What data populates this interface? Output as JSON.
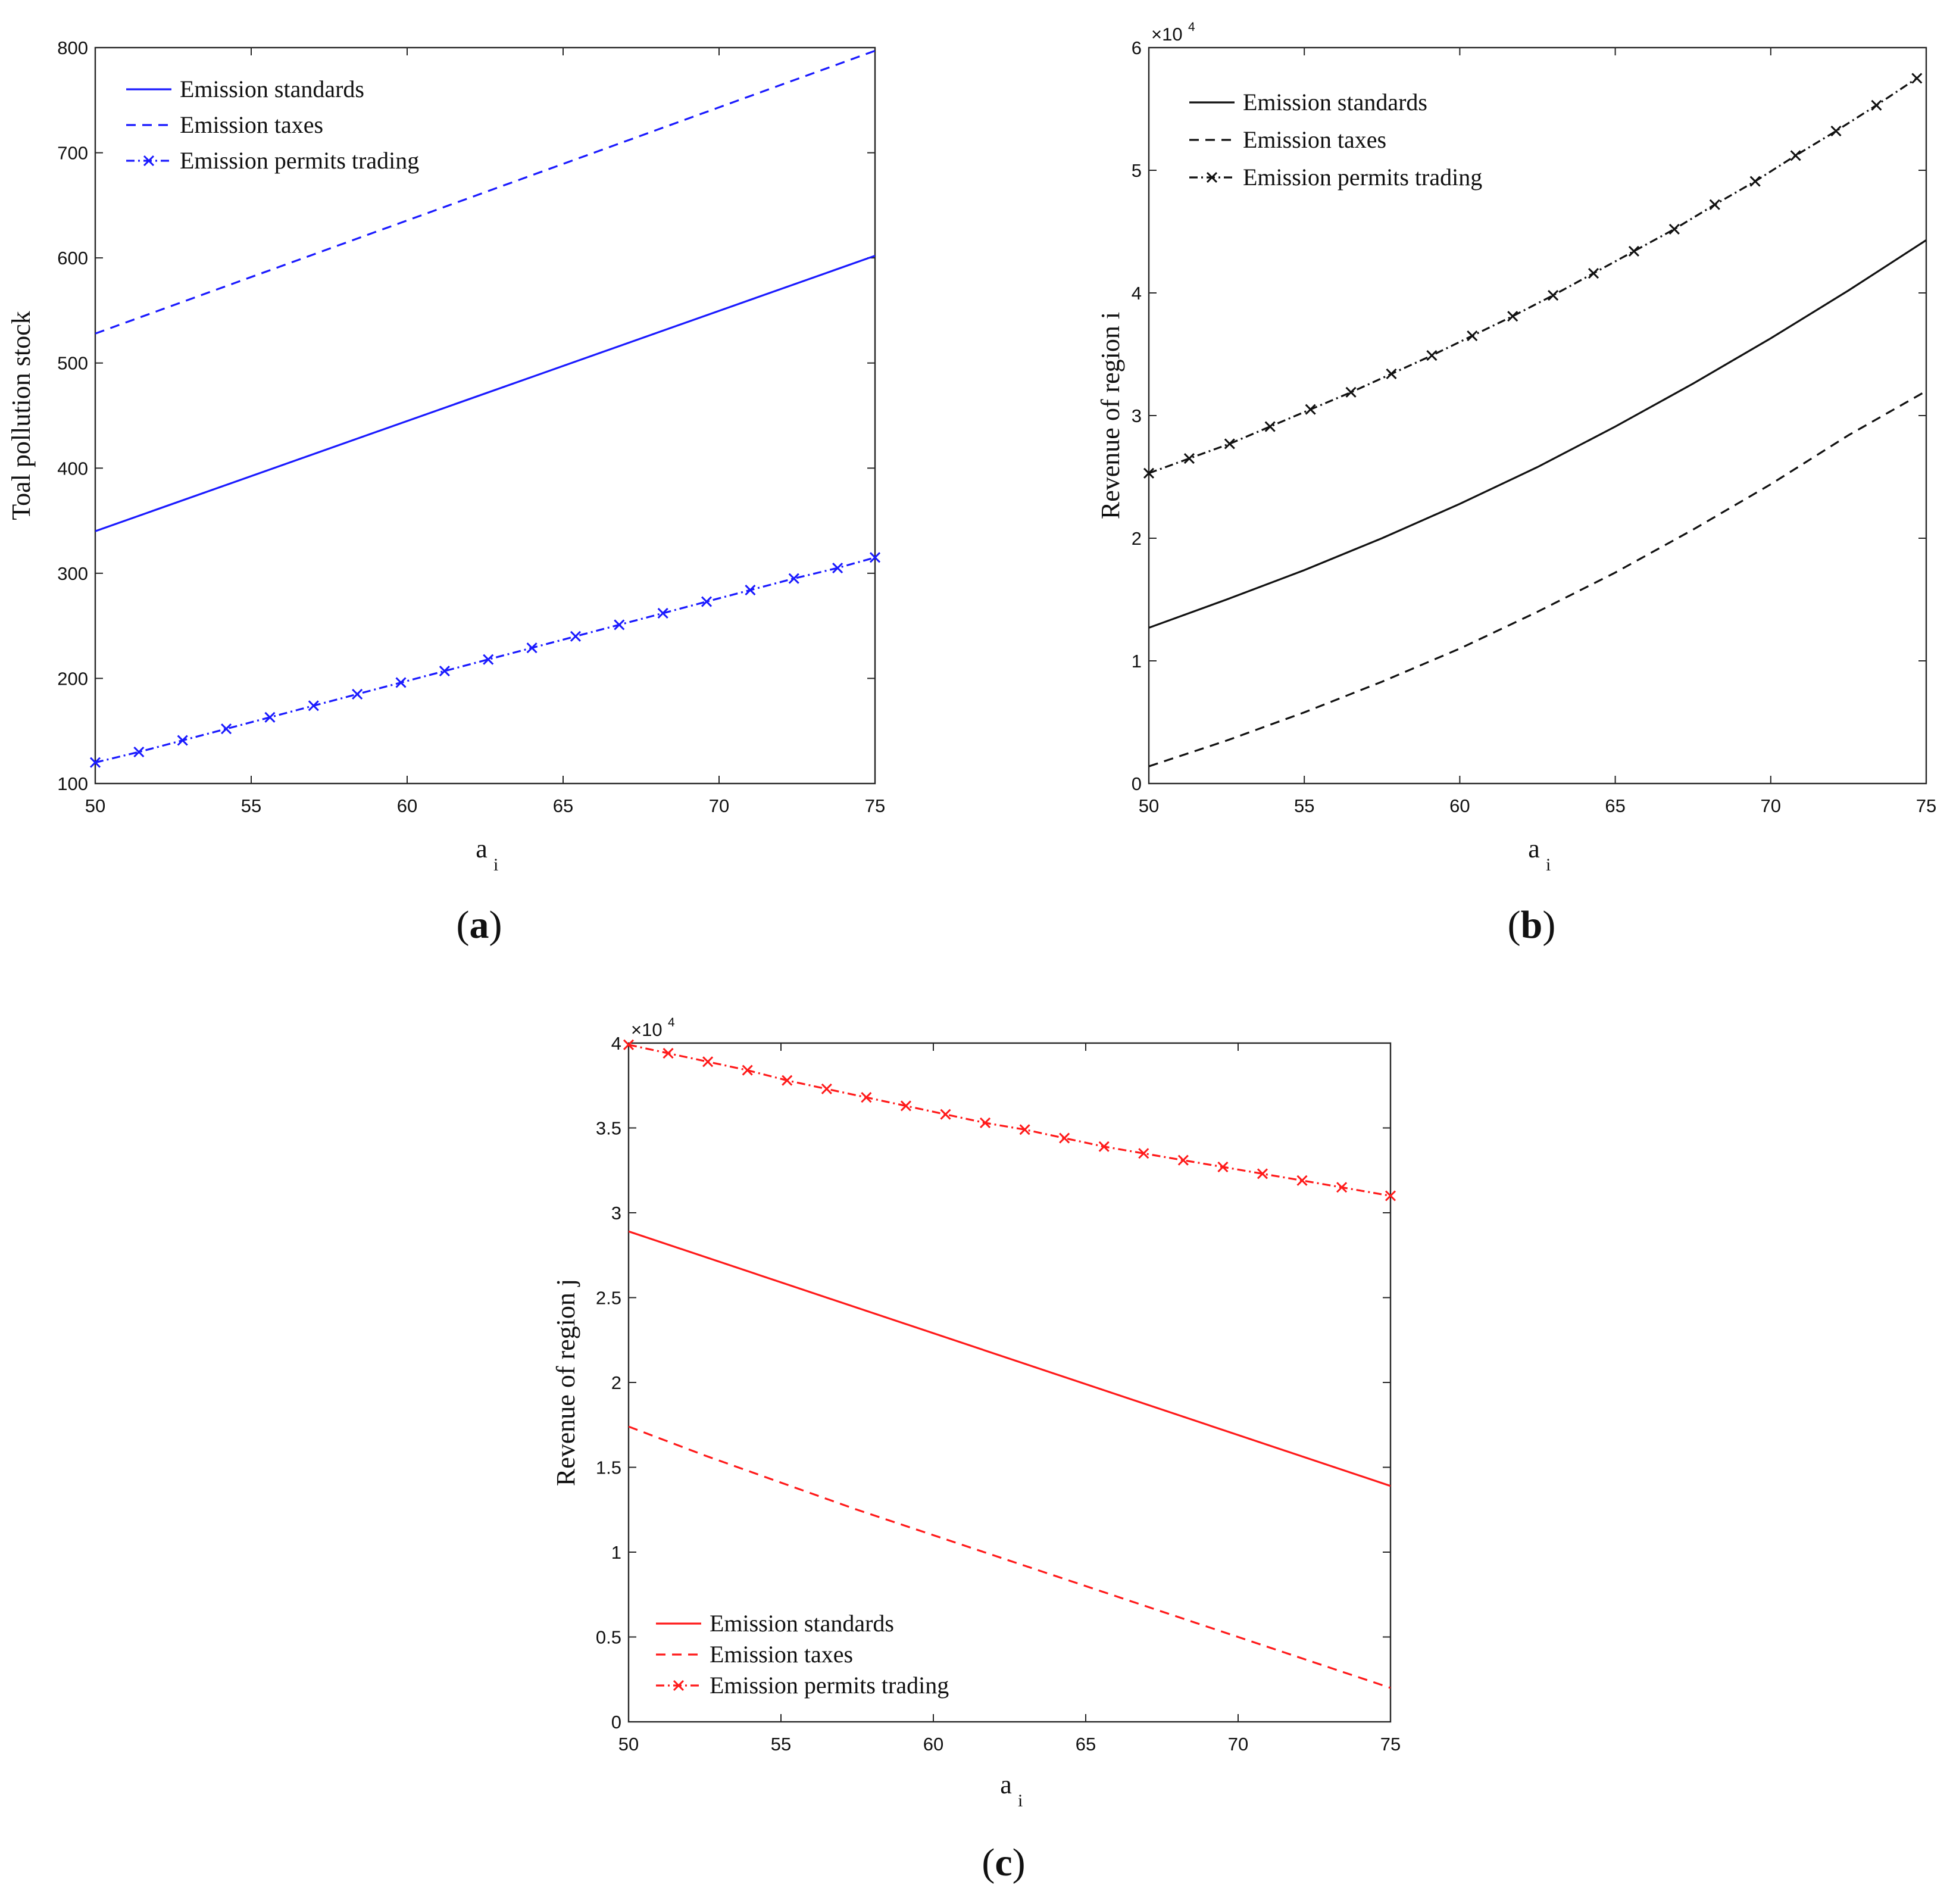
{
  "chart_data": [
    {
      "id": "a",
      "type": "line",
      "panel_label": "a",
      "xlabel": "a",
      "xlabel_sub": "i",
      "ylabel": "Toal pollution stock",
      "xlim": [
        50,
        75
      ],
      "ylim": [
        100,
        800
      ],
      "xticks": [
        50,
        55,
        60,
        65,
        70,
        75
      ],
      "yticks": [
        100,
        200,
        300,
        400,
        500,
        600,
        700,
        800
      ],
      "multiplier": null,
      "color": "#1a1aff",
      "legend_position": "top-left",
      "series": [
        {
          "name": "Emission standards",
          "style": "solid",
          "x": [
            50,
            75
          ],
          "y": [
            340,
            602
          ]
        },
        {
          "name": "Emission taxes",
          "style": "dashed",
          "x": [
            50,
            75
          ],
          "y": [
            528,
            797
          ]
        },
        {
          "name": "Emission permits trading",
          "style": "dashdot-x",
          "x": [
            50,
            51.4,
            52.8,
            54.2,
            55.6,
            57,
            58.4,
            59.8,
            61.2,
            62.6,
            64,
            65.4,
            66.8,
            68.2,
            69.6,
            71,
            72.4,
            73.8,
            75
          ],
          "y": [
            120,
            130,
            141,
            152,
            163,
            174,
            185,
            196,
            207,
            218,
            229,
            240,
            251,
            262,
            273,
            284,
            295,
            305,
            315
          ]
        }
      ]
    },
    {
      "id": "b",
      "type": "line",
      "panel_label": "b",
      "xlabel": "a",
      "xlabel_sub": "i",
      "ylabel": "Revenue of region i",
      "xlim": [
        50,
        75
      ],
      "ylim": [
        0,
        6
      ],
      "xticks": [
        50,
        55,
        60,
        65,
        70,
        75
      ],
      "yticks": [
        0,
        1,
        2,
        3,
        4,
        5,
        6
      ],
      "multiplier": {
        "base": "×10",
        "exp": "4"
      },
      "color": "#111111",
      "legend_position": "top-left",
      "series": [
        {
          "name": "Emission standards",
          "style": "solid",
          "x": [
            50,
            52.5,
            55,
            57.5,
            60,
            62.5,
            65,
            67.5,
            70,
            72.5,
            75
          ],
          "y": [
            1.27,
            1.5,
            1.74,
            2.0,
            2.28,
            2.58,
            2.91,
            3.26,
            3.63,
            4.02,
            4.43
          ]
        },
        {
          "name": "Emission taxes",
          "style": "dashed",
          "x": [
            50,
            52.5,
            55,
            57.5,
            60,
            62.5,
            65,
            67.5,
            70,
            72.5,
            75
          ],
          "y": [
            0.14,
            0.35,
            0.58,
            0.83,
            1.1,
            1.4,
            1.72,
            2.07,
            2.44,
            2.84,
            3.2
          ]
        },
        {
          "name": "Emission permits trading",
          "style": "dashdot-x",
          "x": [
            50,
            51.3,
            52.6,
            53.9,
            55.2,
            56.5,
            57.8,
            59.1,
            60.4,
            61.7,
            63,
            64.3,
            65.6,
            66.9,
            68.2,
            69.5,
            70.8,
            72.1,
            73.4,
            74.7
          ],
          "y": [
            2.53,
            2.65,
            2.77,
            2.91,
            3.05,
            3.19,
            3.34,
            3.49,
            3.65,
            3.81,
            3.98,
            4.16,
            4.34,
            4.52,
            4.72,
            4.91,
            5.12,
            5.32,
            5.53,
            5.75
          ]
        }
      ]
    },
    {
      "id": "c",
      "type": "line",
      "panel_label": "c",
      "xlabel": "a",
      "xlabel_sub": "i",
      "ylabel": "Revenue of region j",
      "xlim": [
        50,
        75
      ],
      "ylim": [
        0,
        4
      ],
      "xticks": [
        50,
        55,
        60,
        65,
        70,
        75
      ],
      "yticks": [
        0,
        0.5,
        1,
        1.5,
        2,
        2.5,
        3,
        3.5,
        4
      ],
      "ytick_labels": [
        "0",
        "0.5",
        "1",
        "1.5",
        "2",
        "2.5",
        "3",
        "3.5",
        "4"
      ],
      "multiplier": {
        "base": "×10",
        "exp": "4"
      },
      "color": "#ff1a1a",
      "legend_position": "bottom-left",
      "series": [
        {
          "name": "Emission standards",
          "style": "solid",
          "x": [
            50,
            75
          ],
          "y": [
            2.89,
            1.39
          ]
        },
        {
          "name": "Emission taxes",
          "style": "dashed",
          "x": [
            50,
            52.5,
            55,
            57.5,
            60,
            62.5,
            65,
            67.5,
            70,
            72.5,
            75
          ],
          "y": [
            1.74,
            1.57,
            1.41,
            1.25,
            1.1,
            0.95,
            0.8,
            0.65,
            0.5,
            0.35,
            0.2
          ]
        },
        {
          "name": "Emission permits trading",
          "style": "dashdot-x",
          "x": [
            50,
            51.3,
            52.6,
            53.9,
            55.2,
            56.5,
            57.8,
            59.1,
            60.4,
            61.7,
            63,
            64.3,
            65.6,
            66.9,
            68.2,
            69.5,
            70.8,
            72.1,
            73.4,
            75
          ],
          "y": [
            3.99,
            3.94,
            3.89,
            3.84,
            3.78,
            3.73,
            3.68,
            3.63,
            3.58,
            3.53,
            3.49,
            3.44,
            3.39,
            3.35,
            3.31,
            3.27,
            3.23,
            3.19,
            3.15,
            3.1
          ]
        }
      ]
    }
  ]
}
